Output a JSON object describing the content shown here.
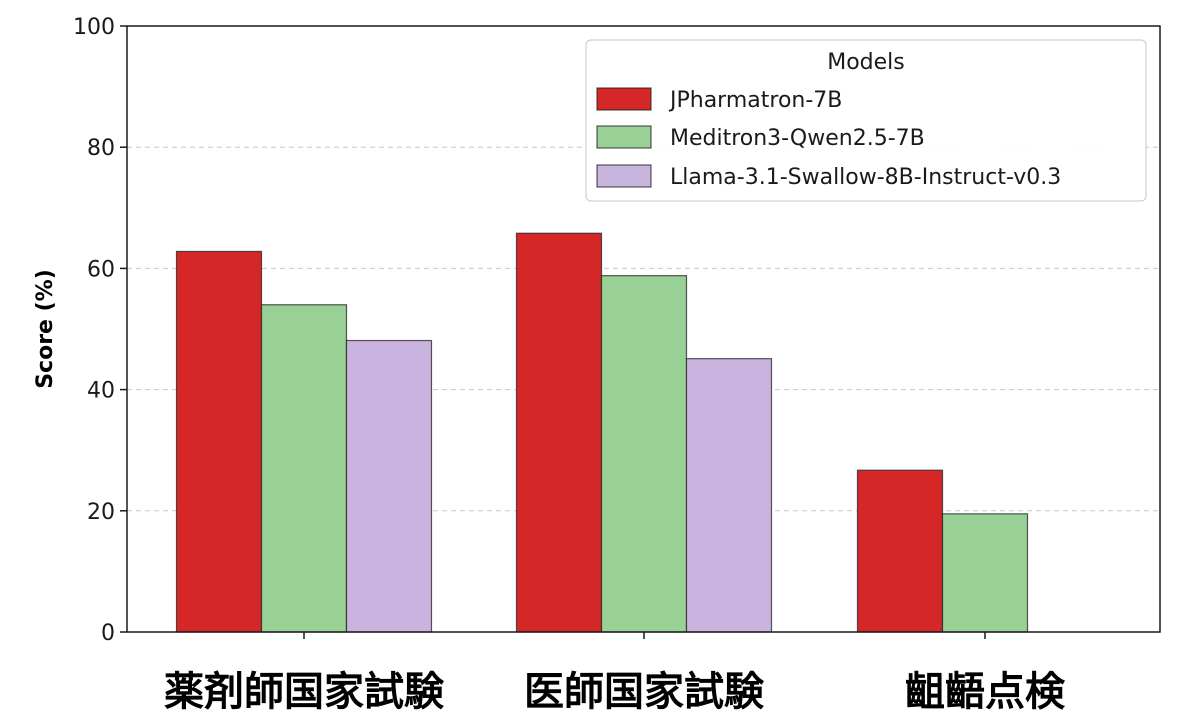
{
  "chart_data": {
    "type": "bar",
    "title": "",
    "xlabel": "",
    "ylabel": "Score (%)",
    "ylim": [
      0,
      100
    ],
    "yticks": [
      "0",
      "20",
      "40",
      "60",
      "80",
      "100"
    ],
    "grid": "horizontal dashed",
    "legend_placement": "top-right",
    "legend_title": "Models",
    "categories": [
      "薬剤師国家試験",
      "医師国家試験",
      "齟齬点検"
    ],
    "series": [
      {
        "name": "JPharmatron-7B",
        "values": [
          62.8,
          65.8,
          26.7
        ],
        "color": "#d62728"
      },
      {
        "name": "Meditron3-Qwen2.5-7B",
        "values": [
          54.0,
          58.8,
          19.5
        ],
        "color": "#98d095"
      },
      {
        "name": "Llama-3.1-Swallow-8B-Instruct-v0.3",
        "values": [
          48.1,
          45.1,
          null
        ],
        "color": "#c9b3df"
      }
    ]
  }
}
